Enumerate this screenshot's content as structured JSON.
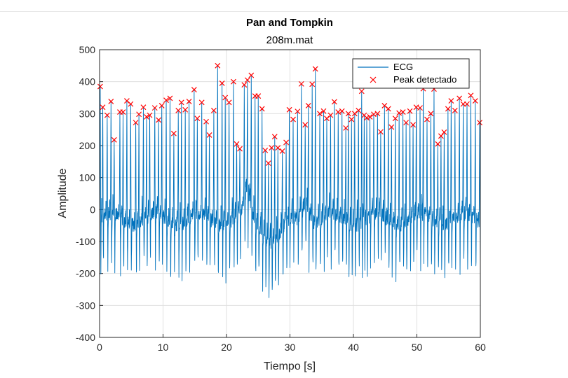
{
  "chart_data": {
    "type": "line",
    "title": "Pan and Tompkin",
    "subtitle": "208m.mat",
    "xlabel": "Tiempo [s]",
    "ylabel": "Amplitude",
    "xlim": [
      0,
      60
    ],
    "ylim": [
      -400,
      500
    ],
    "xticks": [
      0,
      10,
      20,
      30,
      40,
      50,
      60
    ],
    "yticks": [
      -400,
      -300,
      -200,
      -100,
      0,
      100,
      200,
      300,
      400,
      500
    ],
    "grid": true,
    "legend_position": "top-right",
    "colors": {
      "ecg": "#0072BD",
      "peaks": "#FF0000"
    },
    "series": [
      {
        "name": "ECG",
        "style": "line",
        "note_values": "continuous signal ~(-350..450)"
      },
      {
        "name": "Peak detectado",
        "style": "x-marker",
        "x": [
          0.1,
          0.5,
          1.2,
          1.8,
          2.3,
          3.2,
          3.7,
          4.3,
          4.9,
          5.7,
          6.2,
          6.9,
          7.4,
          7.9,
          8.7,
          9.3,
          9.8,
          10.5,
          11.1,
          11.7,
          12.4,
          12.9,
          13.5,
          14.1,
          14.9,
          15.4,
          16.1,
          16.8,
          17.3,
          18.0,
          18.6,
          19.3,
          19.8,
          20.4,
          21.1,
          21.6,
          22.1,
          22.8,
          23.3,
          23.9,
          24.5,
          25.0,
          25.6,
          26.1,
          26.6,
          27.1,
          27.6,
          28.1,
          28.8,
          29.4,
          29.9,
          30.5,
          31.2,
          31.8,
          32.4,
          32.9,
          33.5,
          34.0,
          34.7,
          35.3,
          35.8,
          36.4,
          37.0,
          37.6,
          38.2,
          38.8,
          39.2,
          39.7,
          40.2,
          40.8,
          41.3,
          41.7,
          42.1,
          42.6,
          43.2,
          43.8,
          44.3,
          44.9,
          45.5,
          46.0,
          46.6,
          47.2,
          47.8,
          48.3,
          48.9,
          49.4,
          49.9,
          50.5,
          51.0,
          51.6,
          52.2,
          52.7,
          53.3,
          53.8,
          54.3,
          54.9,
          55.4,
          56.0,
          56.7,
          57.3,
          57.9,
          58.5,
          59.2,
          59.9
        ],
        "y": [
          385,
          320,
          295,
          338,
          218,
          305,
          305,
          340,
          330,
          272,
          298,
          320,
          290,
          295,
          318,
          280,
          325,
          342,
          348,
          238,
          310,
          335,
          312,
          338,
          375,
          285,
          335,
          275,
          233,
          310,
          450,
          395,
          350,
          335,
          400,
          205,
          190,
          390,
          405,
          420,
          355,
          355,
          315,
          185,
          145,
          193,
          228,
          193,
          183,
          210,
          312,
          282,
          307,
          393,
          265,
          325,
          392,
          440,
          300,
          308,
          285,
          295,
          337,
          305,
          308,
          255,
          300,
          282,
          300,
          310,
          370,
          295,
          287,
          290,
          298,
          300,
          243,
          325,
          315,
          258,
          285,
          302,
          305,
          272,
          308,
          265,
          320,
          318,
          378,
          282,
          300,
          377,
          205,
          230,
          242,
          315,
          340,
          310,
          348,
          330,
          330,
          357,
          340,
          272
        ]
      }
    ]
  }
}
